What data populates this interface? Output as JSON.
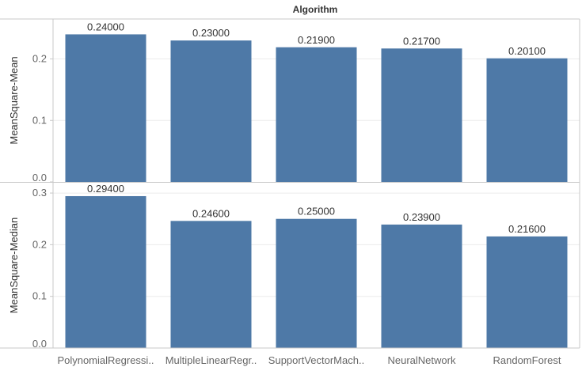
{
  "chart_data": {
    "type": "bar",
    "column_header": "Algorithm",
    "categories": [
      "PolynomialRegressi..",
      "MultipleLinearRegr..",
      "SupportVectorMach..",
      "NeuralNetwork",
      "RandomForest"
    ],
    "panels": [
      {
        "ylabel": "MeanSquare-Mean",
        "values": [
          0.24,
          0.23,
          0.219,
          0.217,
          0.201
        ],
        "value_labels": [
          "0.24000",
          "0.23000",
          "0.21900",
          "0.21700",
          "0.20100"
        ],
        "ylim": [
          0,
          0.265
        ],
        "yticks": [
          0.0,
          0.1,
          0.2
        ],
        "ytick_labels": [
          "0.0",
          "0.1",
          "0.2"
        ]
      },
      {
        "ylabel": "MeanSquare-Median",
        "values": [
          0.294,
          0.246,
          0.25,
          0.239,
          0.216
        ],
        "value_labels": [
          "0.29400",
          "0.24600",
          "0.25000",
          "0.23900",
          "0.21600"
        ],
        "ylim": [
          0,
          0.32
        ],
        "yticks": [
          0.0,
          0.1,
          0.2,
          0.3
        ],
        "ytick_labels": [
          "0.0",
          "0.1",
          "0.2",
          "0.3"
        ]
      }
    ],
    "bar_color": "#4e79a7",
    "grid": true,
    "legend": "none"
  }
}
